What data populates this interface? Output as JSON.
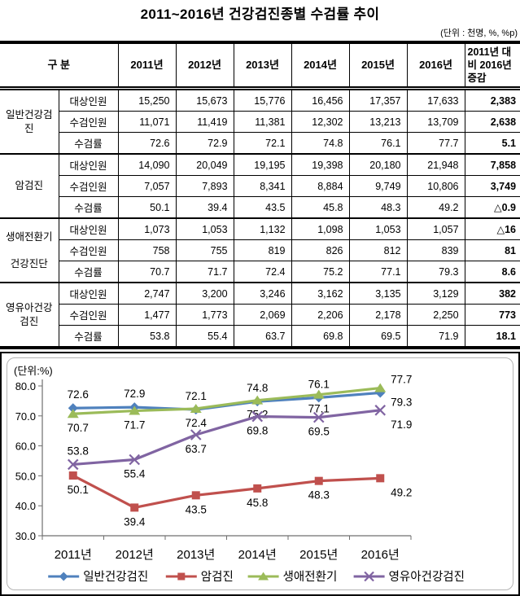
{
  "page": {
    "title": "2011~2016년 건강검진종별 수검률 추이",
    "unit_note": "(단위 : 천명, %, %p)"
  },
  "table": {
    "col_headers": [
      "구 분",
      "2011년",
      "2012년",
      "2013년",
      "2014년",
      "2015년",
      "2016년",
      "2011년 대비 2016년 증감"
    ],
    "groups": [
      {
        "name": "일반건강검\n진",
        "rows": [
          {
            "label": "대상인원",
            "values": [
              "15,250",
              "15,673",
              "15,776",
              "16,456",
              "17,357",
              "17,633"
            ],
            "change": "2,383"
          },
          {
            "label": "수검인원",
            "values": [
              "11,071",
              "11,419",
              "11,381",
              "12,302",
              "13,213",
              "13,709"
            ],
            "change": "2,638"
          },
          {
            "label": "수검률",
            "values": [
              "72.6",
              "72.9",
              "72.1",
              "74.8",
              "76.1",
              "77.7"
            ],
            "change": "5.1"
          }
        ]
      },
      {
        "name": "암검진",
        "rows": [
          {
            "label": "대상인원",
            "values": [
              "14,090",
              "20,049",
              "19,195",
              "19,398",
              "20,180",
              "21,948"
            ],
            "change": "7,858"
          },
          {
            "label": "수검인원",
            "values": [
              "7,057",
              "7,893",
              "8,341",
              "8,884",
              "9,749",
              "10,806"
            ],
            "change": "3,749"
          },
          {
            "label": "수검률",
            "values": [
              "50.1",
              "39.4",
              "43.5",
              "45.8",
              "48.3",
              "49.2"
            ],
            "change": "△0.9"
          }
        ]
      },
      {
        "name": "생애전환기\n\n건강진단",
        "rows": [
          {
            "label": "대상인원",
            "values": [
              "1,073",
              "1,053",
              "1,132",
              "1,098",
              "1,053",
              "1,057"
            ],
            "change": "△16"
          },
          {
            "label": "수검인원",
            "values": [
              "758",
              "755",
              "819",
              "826",
              "812",
              "839"
            ],
            "change": "81"
          },
          {
            "label": "수검률",
            "values": [
              "70.7",
              "71.7",
              "72.4",
              "75.2",
              "77.1",
              "79.3"
            ],
            "change": "8.6"
          }
        ]
      },
      {
        "name": "영유아건강\n검진",
        "rows": [
          {
            "label": "대상인원",
            "values": [
              "2,747",
              "3,200",
              "3,246",
              "3,162",
              "3,135",
              "3,129"
            ],
            "change": "382"
          },
          {
            "label": "수검인원",
            "values": [
              "1,477",
              "1,773",
              "2,069",
              "2,206",
              "2,178",
              "2,250"
            ],
            "change": "773"
          },
          {
            "label": "수검률",
            "values": [
              "53.8",
              "55.4",
              "63.7",
              "69.8",
              "69.5",
              "71.9"
            ],
            "change": "18.1"
          }
        ]
      }
    ]
  },
  "chart_data": {
    "type": "line",
    "unit_label": "(단위:%)",
    "x": [
      "2011년",
      "2012년",
      "2013년",
      "2014년",
      "2015년",
      "2016년"
    ],
    "series": [
      {
        "name": "일반건강검진",
        "values": [
          72.6,
          72.9,
          72.1,
          74.8,
          76.1,
          77.7
        ],
        "color": "#4f81bd",
        "marker": "diamond",
        "label_pos": [
          "above",
          "above",
          "above",
          "above",
          "above",
          "above"
        ]
      },
      {
        "name": "암검진",
        "values": [
          50.1,
          39.4,
          43.5,
          45.8,
          48.3,
          49.2
        ],
        "color": "#c0504d",
        "marker": "square",
        "label_pos": [
          "below",
          "below",
          "below",
          "below",
          "below",
          "below"
        ]
      },
      {
        "name": "생애전환기",
        "values": [
          70.7,
          71.7,
          72.4,
          75.2,
          77.1,
          79.3
        ],
        "color": "#9bbb59",
        "marker": "triangle",
        "label_pos": [
          "below",
          "below",
          "below",
          "below",
          "below",
          "below"
        ]
      },
      {
        "name": "영유아건강검진",
        "values": [
          53.8,
          55.4,
          63.7,
          69.8,
          69.5,
          71.9
        ],
        "color": "#8064a2",
        "marker": "x",
        "label_pos": [
          "above",
          "below",
          "below",
          "below",
          "below",
          "below"
        ]
      }
    ],
    "ylim": [
      30,
      80
    ],
    "yticks": [
      80,
      70,
      60,
      50,
      40,
      30
    ],
    "grid": false,
    "legend_position": "bottom"
  }
}
